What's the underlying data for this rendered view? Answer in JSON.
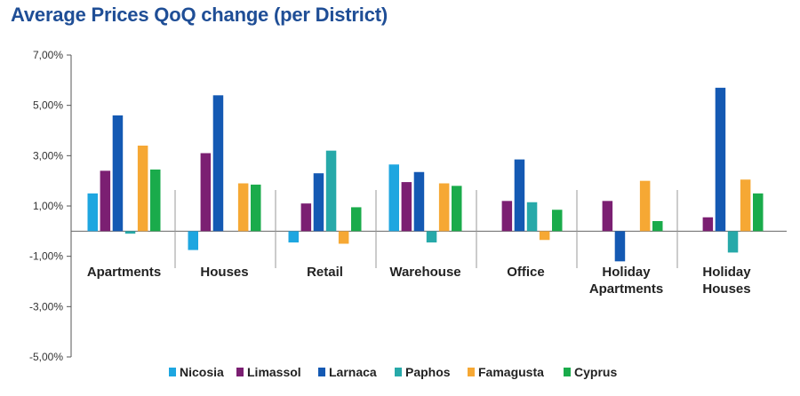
{
  "chart_data": {
    "type": "bar",
    "title": "Average Prices QoQ change (per District)",
    "categories": [
      [
        "Apartments"
      ],
      [
        "Houses"
      ],
      [
        "Retail"
      ],
      [
        "Warehouse"
      ],
      [
        "Office"
      ],
      [
        "Holiday",
        "Apartments"
      ],
      [
        "Holiday",
        "Houses"
      ]
    ],
    "series": [
      {
        "name": "Nicosia",
        "color": "#1ea6e0",
        "values": [
          1.5,
          -0.75,
          -0.45,
          2.65,
          0.0,
          0.0,
          0.0
        ]
      },
      {
        "name": "Limassol",
        "color": "#7b1f72",
        "values": [
          2.4,
          3.1,
          1.1,
          1.95,
          1.2,
          1.2,
          0.55
        ]
      },
      {
        "name": "Larnaca",
        "color": "#1459b3",
        "values": [
          4.6,
          5.4,
          2.3,
          2.35,
          2.85,
          -1.2,
          5.7
        ]
      },
      {
        "name": "Paphos",
        "color": "#27a9a9",
        "values": [
          -0.1,
          0.0,
          3.2,
          -0.45,
          1.15,
          0.0,
          -0.85
        ]
      },
      {
        "name": "Famagusta",
        "color": "#f6a834",
        "values": [
          3.4,
          1.9,
          -0.5,
          1.9,
          -0.35,
          2.0,
          2.05
        ]
      },
      {
        "name": "Cyprus",
        "color": "#1aab4b",
        "values": [
          2.45,
          1.85,
          0.95,
          1.8,
          0.85,
          0.4,
          1.5
        ]
      }
    ],
    "y_ticks": [
      "7,00%",
      "5,00%",
      "3,00%",
      "1,00%",
      "-1,00%",
      "-3,00%",
      "-5,00%"
    ],
    "ylim": [
      -5,
      7
    ],
    "grid": false,
    "legend_position": "bottom"
  }
}
